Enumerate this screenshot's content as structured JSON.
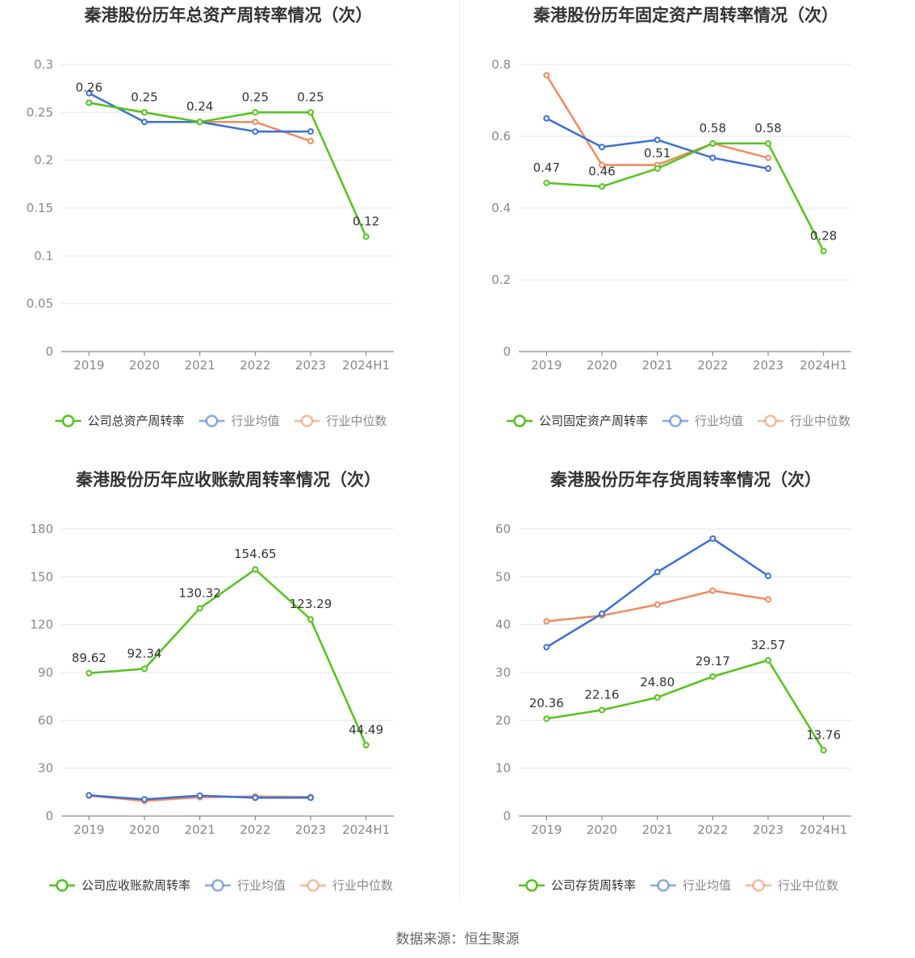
{
  "source_text": "数据来源：恒生聚源",
  "colors": {
    "company": "#52c41a",
    "industry_avg": "#3a6fd8",
    "industry_median": "#f08a5d",
    "grid": "#e4e7ee",
    "text": "#333333",
    "axis_text": "#888888"
  },
  "chart_data": [
    {
      "type": "line",
      "title": "秦港股份历年总资产周转率情况（次）",
      "categories": [
        "2019",
        "2020",
        "2021",
        "2022",
        "2023",
        "2024H1"
      ],
      "yticks": [
        "0",
        "0.05",
        "0.1",
        "0.15",
        "0.2",
        "0.25",
        "0.3"
      ],
      "ylim": [
        0,
        0.3
      ],
      "series": [
        {
          "name": "公司总资产周转率",
          "values": [
            0.26,
            0.25,
            0.24,
            0.25,
            0.25,
            0.12
          ],
          "labels": [
            "0.26",
            "0.25",
            "0.24",
            "0.25",
            "0.25",
            "0.12"
          ]
        },
        {
          "name": "行业均值",
          "values": [
            0.27,
            0.24,
            0.24,
            0.23,
            0.23,
            null
          ]
        },
        {
          "name": "行业中位数",
          "values": [
            0.26,
            0.25,
            0.24,
            0.24,
            0.22,
            null
          ]
        }
      ]
    },
    {
      "type": "line",
      "title": "秦港股份历年固定资产周转率情况（次）",
      "categories": [
        "2019",
        "2020",
        "2021",
        "2022",
        "2023",
        "2024H1"
      ],
      "yticks": [
        "0",
        "0.2",
        "0.4",
        "0.6",
        "0.8"
      ],
      "ylim": [
        0,
        0.8
      ],
      "series": [
        {
          "name": "公司固定资产周转率",
          "values": [
            0.47,
            0.46,
            0.51,
            0.58,
            0.58,
            0.28
          ],
          "labels": [
            "0.47",
            "0.46",
            "0.51",
            "0.58",
            "0.58",
            "0.28"
          ]
        },
        {
          "name": "行业均值",
          "values": [
            0.65,
            0.57,
            0.59,
            0.54,
            0.51,
            null
          ]
        },
        {
          "name": "行业中位数",
          "values": [
            0.77,
            0.52,
            0.52,
            0.58,
            0.54,
            null
          ]
        }
      ]
    },
    {
      "type": "line",
      "title": "秦港股份历年应收账款周转率情况（次）",
      "categories": [
        "2019",
        "2020",
        "2021",
        "2022",
        "2023",
        "2024H1"
      ],
      "yticks": [
        "0",
        "30",
        "60",
        "90",
        "120",
        "150",
        "180"
      ],
      "ylim": [
        0,
        180
      ],
      "series": [
        {
          "name": "公司应收账款周转率",
          "values": [
            89.62,
            92.34,
            130.32,
            154.65,
            123.29,
            44.49
          ],
          "labels": [
            "89.62",
            "92.34",
            "130.32",
            "154.65",
            "123.29",
            "44.49"
          ]
        },
        {
          "name": "行业均值",
          "values": [
            13,
            10.5,
            12.8,
            11.5,
            11.5,
            null
          ]
        },
        {
          "name": "行业中位数",
          "values": [
            12.8,
            9.5,
            11.8,
            12.3,
            12,
            null
          ]
        }
      ]
    },
    {
      "type": "line",
      "title": "秦港股份历年存货周转率情况（次）",
      "categories": [
        "2019",
        "2020",
        "2021",
        "2022",
        "2023",
        "2024H1"
      ],
      "yticks": [
        "0",
        "10",
        "20",
        "30",
        "40",
        "50",
        "60"
      ],
      "ylim": [
        0,
        60
      ],
      "series": [
        {
          "name": "公司存货周转率",
          "values": [
            20.36,
            22.16,
            24.8,
            29.17,
            32.57,
            13.76
          ],
          "labels": [
            "20.36",
            "22.16",
            "24.80",
            "29.17",
            "32.57",
            "13.76"
          ]
        },
        {
          "name": "行业均值",
          "values": [
            35.3,
            42.3,
            51,
            58,
            50.2,
            null
          ]
        },
        {
          "name": "行业中位数",
          "values": [
            40.7,
            41.9,
            44.2,
            47.1,
            45.3,
            null
          ]
        }
      ]
    }
  ]
}
